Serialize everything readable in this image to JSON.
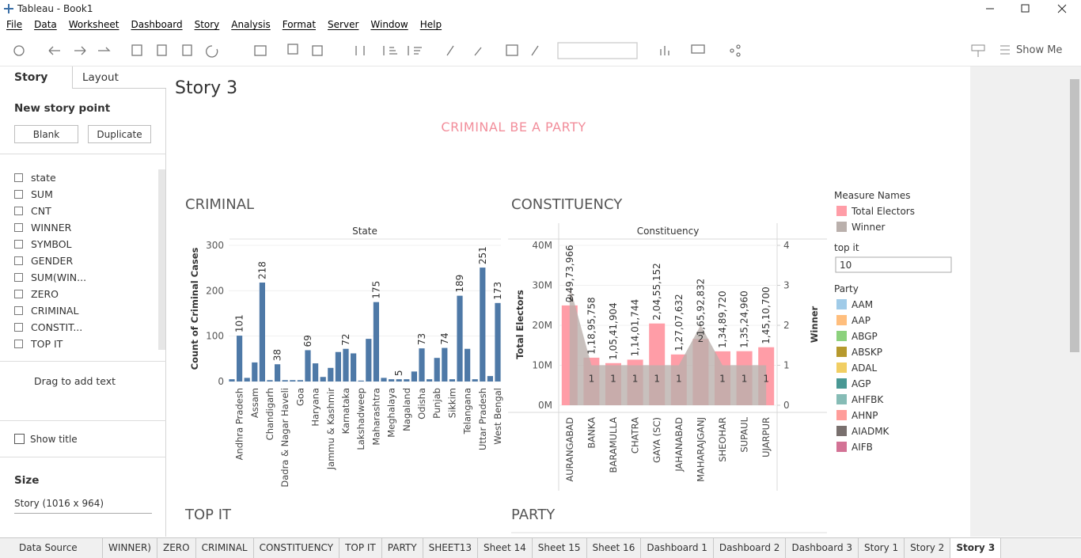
{
  "window": {
    "title": "Tableau - Book1"
  },
  "menu": [
    "File",
    "Data",
    "Worksheet",
    "Dashboard",
    "Story",
    "Analysis",
    "Format",
    "Server",
    "Window",
    "Help"
  ],
  "toolbar": {
    "show_me": "Show Me"
  },
  "left_panel": {
    "tabs": [
      "Story",
      "Layout"
    ],
    "new_story_point": "New story point",
    "buttons": [
      "Blank",
      "Duplicate"
    ],
    "sheets": [
      "state",
      "SUM",
      "CNT",
      "WINNER",
      "SYMBOL",
      "GENDER",
      "SUM(WIN...",
      "ZERO",
      "CRIMINAL",
      "CONSTIT...",
      "TOP IT"
    ],
    "drag_text": "Drag to add text",
    "show_title": "Show title",
    "size_label": "Size",
    "size_value": "Story (1016 x 964)"
  },
  "story": {
    "title": "Story 3",
    "caption": "CRIMINAL BE A PARTY",
    "lower_titles": [
      "TOP IT",
      "PARTY"
    ]
  },
  "chart_data": [
    {
      "type": "bar",
      "title": "CRIMINAL",
      "x_header": "State",
      "ylabel": "Count of Criminal Cases",
      "color": "#4e79a7",
      "categories": [
        null,
        "Andhra Pradesh",
        null,
        "Assam",
        null,
        "Chandigarh",
        null,
        "Dadra & Nagar Haveli",
        null,
        "Goa",
        null,
        "Haryana",
        null,
        "Jammu & Kashmir",
        null,
        "Karnataka",
        null,
        "Lakshadweep",
        null,
        "Maharashtra",
        null,
        "Meghalaya",
        null,
        "Nagaland",
        null,
        "Odisha",
        null,
        "Punjab",
        null,
        "Sikkim",
        null,
        "Telangana",
        null,
        "Uttar Pradesh",
        null,
        "West Bengal"
      ],
      "values": [
        5,
        101,
        8,
        42,
        218,
        3,
        38,
        3,
        3,
        3,
        69,
        40,
        10,
        30,
        65,
        72,
        62,
        2,
        94,
        175,
        8,
        5,
        5,
        5,
        22,
        73,
        5,
        52,
        74,
        5,
        189,
        72,
        5,
        251,
        12,
        173
      ],
      "value_labels": [
        null,
        "101",
        null,
        null,
        "218",
        null,
        "38",
        null,
        null,
        null,
        "69",
        null,
        null,
        null,
        null,
        "72",
        null,
        null,
        null,
        "175",
        null,
        null,
        "5",
        null,
        null,
        "73",
        null,
        null,
        "74",
        null,
        "189",
        null,
        null,
        "251",
        null,
        "173"
      ],
      "ylim": [
        0,
        300
      ],
      "yticks": [
        0,
        100,
        200,
        300
      ],
      "grid": true
    },
    {
      "type": "dual_axis",
      "title": "CONSTITUENCY",
      "x_header": "Constituency",
      "ylabel": "Total Electors",
      "y2label": "Winner",
      "legend_title": "Measure Names",
      "categories": [
        "AURANGABAD",
        "BANKA",
        "BARAMULLA",
        "CHATRA",
        "GAYA (SC)",
        "JAHANABAD",
        "MAHARAJGANJ",
        "SHEOHAR",
        "SUPAUL",
        "UJARPUR"
      ],
      "series": [
        {
          "name": "Total Electors",
          "kind": "bar",
          "color": "#ff9da7",
          "values": [
            24973966,
            11895758,
            10541904,
            11401744,
            20455152,
            12707632,
            16592832,
            13489720,
            13524960,
            14510700
          ],
          "value_labels": [
            "2,49,73,966",
            "1,18,95,758",
            "1,05,41,904",
            "1,14,01,744",
            "2,04,55,152",
            "1,27,07,632",
            "1,65,92,832",
            "1,34,89,720",
            "1,35,24,960",
            "1,45,10,700"
          ]
        },
        {
          "name": "Winner",
          "kind": "area",
          "axis": "y2",
          "color": "#bab0ac",
          "values": [
            3,
            1,
            1,
            1,
            1,
            1,
            2,
            1,
            1,
            1
          ]
        }
      ],
      "ylim": [
        0,
        40000000
      ],
      "yticks": [
        {
          "value": 0,
          "label": "0M"
        },
        {
          "value": 10000000,
          "label": "10M"
        },
        {
          "value": 20000000,
          "label": "20M"
        },
        {
          "value": 30000000,
          "label": "30M"
        },
        {
          "value": 40000000,
          "label": "40M"
        }
      ],
      "y2lim": [
        0,
        4
      ],
      "y2ticks": [
        0,
        1,
        2,
        3,
        4
      ],
      "grid": true
    }
  ],
  "filters": {
    "top_it": {
      "title": "top it",
      "value": "10"
    }
  },
  "party_legend": {
    "title": "Party",
    "items": [
      {
        "name": "AAM",
        "color": "#a0cbe8"
      },
      {
        "name": "AAP",
        "color": "#ffbe7d"
      },
      {
        "name": "ABGP",
        "color": "#8cd17d"
      },
      {
        "name": "ABSKP",
        "color": "#b6992d"
      },
      {
        "name": "ADAL",
        "color": "#f1ce63"
      },
      {
        "name": "AGP",
        "color": "#499894"
      },
      {
        "name": "AHFBK",
        "color": "#86bcb6"
      },
      {
        "name": "AHNP",
        "color": "#ff9d9a"
      },
      {
        "name": "AIADMK",
        "color": "#79706e"
      },
      {
        "name": "AIFB",
        "color": "#d37295"
      }
    ]
  },
  "tabs": [
    "Data Source",
    "WINNER)",
    "ZERO",
    "CRIMINAL",
    "CONSTITUENCY",
    "TOP IT",
    "PARTY",
    "SHEET13",
    "Sheet 14",
    "Sheet 15",
    "Sheet 16",
    "Dashboard 1",
    "Dashboard 2",
    "Dashboard 3",
    "Story 1",
    "Story 2",
    "Story 3"
  ]
}
